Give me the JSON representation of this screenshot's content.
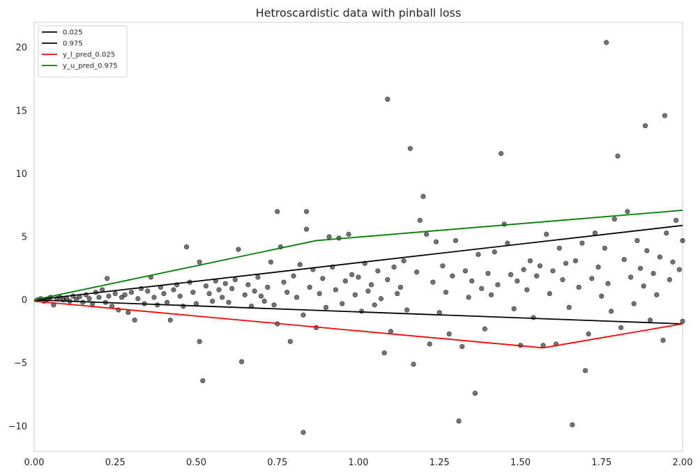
{
  "chart_data": {
    "type": "scatter",
    "title": "Hetroscardistic data with pinball loss",
    "xlabel": "",
    "ylabel": "",
    "xlim": [
      0,
      2
    ],
    "ylim": [
      -12,
      22
    ],
    "grid": false,
    "legend_position": "top-left",
    "x_ticks": [
      0,
      0.25,
      0.5,
      0.75,
      1.0,
      1.25,
      1.5,
      1.75,
      2.0
    ],
    "x_tick_labels": [
      "0.00",
      "0.25",
      "0.50",
      "0.75",
      "1.00",
      "1.25",
      "1.50",
      "1.75",
      "2.00"
    ],
    "y_ticks": [
      -10,
      -5,
      0,
      5,
      10,
      15,
      20
    ],
    "y_tick_labels": [
      "−10",
      "−5",
      "0",
      "5",
      "10",
      "15",
      "20"
    ],
    "legend": [
      {
        "label": "0.025",
        "color": "#000000"
      },
      {
        "label": "0.975",
        "color": "#000000"
      },
      {
        "label": "y_l_pred_0.025",
        "color": "#ff0000"
      },
      {
        "label": "y_u_pred_0.975",
        "color": "#008000"
      }
    ],
    "series": [
      {
        "name": "0.025",
        "type": "line",
        "color": "#000000",
        "x": [
          0,
          2.0
        ],
        "y": [
          0,
          -1.9
        ]
      },
      {
        "name": "0.975",
        "type": "line",
        "color": "#000000",
        "x": [
          0,
          2.0
        ],
        "y": [
          0,
          5.9
        ]
      },
      {
        "name": "y_l_pred_0.025",
        "type": "line",
        "color": "#ff0000",
        "x": [
          0,
          1.57,
          2.0
        ],
        "y": [
          -0.1,
          -3.8,
          -1.9
        ]
      },
      {
        "name": "y_u_pred_0.975",
        "type": "line",
        "color": "#008000",
        "x": [
          0,
          0.87,
          2.0
        ],
        "y": [
          0,
          4.7,
          7.1
        ]
      }
    ],
    "scatter_points": [
      [
        0.01,
        0.0
      ],
      [
        0.02,
        0.1
      ],
      [
        0.03,
        -0.1
      ],
      [
        0.04,
        0.05
      ],
      [
        0.05,
        0.2
      ],
      [
        0.06,
        -0.4
      ],
      [
        0.07,
        0.1
      ],
      [
        0.08,
        0.2
      ],
      [
        0.09,
        0.0
      ],
      [
        0.1,
        0.15
      ],
      [
        0.11,
        -0.1
      ],
      [
        0.12,
        0.3
      ],
      [
        0.13,
        0.05
      ],
      [
        0.14,
        0.25
      ],
      [
        0.15,
        -0.2
      ],
      [
        0.16,
        0.4
      ],
      [
        0.17,
        0.1
      ],
      [
        0.18,
        -0.3
      ],
      [
        0.19,
        0.6
      ],
      [
        0.2,
        0.2
      ],
      [
        0.21,
        0.8
      ],
      [
        0.22,
        -0.2
      ],
      [
        0.225,
        1.7
      ],
      [
        0.23,
        0.3
      ],
      [
        0.24,
        -0.5
      ],
      [
        0.25,
        0.5
      ],
      [
        0.26,
        -0.8
      ],
      [
        0.27,
        0.2
      ],
      [
        0.28,
        0.4
      ],
      [
        0.29,
        -1.0
      ],
      [
        0.3,
        0.6
      ],
      [
        0.31,
        -1.6
      ],
      [
        0.32,
        0.1
      ],
      [
        0.33,
        0.9
      ],
      [
        0.34,
        -0.3
      ],
      [
        0.35,
        0.7
      ],
      [
        0.36,
        1.8
      ],
      [
        0.37,
        0.2
      ],
      [
        0.38,
        -0.4
      ],
      [
        0.39,
        1.0
      ],
      [
        0.4,
        0.5
      ],
      [
        0.41,
        -0.2
      ],
      [
        0.42,
        -1.6
      ],
      [
        0.43,
        0.8
      ],
      [
        0.44,
        1.2
      ],
      [
        0.45,
        0.3
      ],
      [
        0.46,
        -0.5
      ],
      [
        0.47,
        4.2
      ],
      [
        0.48,
        1.4
      ],
      [
        0.49,
        0.6
      ],
      [
        0.5,
        -0.3
      ],
      [
        0.51,
        -3.3
      ],
      [
        0.51,
        3.0
      ],
      [
        0.52,
        -6.4
      ],
      [
        0.53,
        1.1
      ],
      [
        0.54,
        0.5
      ],
      [
        0.55,
        -0.1
      ],
      [
        0.56,
        1.5
      ],
      [
        0.57,
        0.8
      ],
      [
        0.58,
        0.2
      ],
      [
        0.59,
        1.3
      ],
      [
        0.6,
        -0.2
      ],
      [
        0.61,
        0.9
      ],
      [
        0.62,
        1.6
      ],
      [
        0.63,
        4.0
      ],
      [
        0.64,
        -4.9
      ],
      [
        0.65,
        0.4
      ],
      [
        0.66,
        1.2
      ],
      [
        0.67,
        -0.5
      ],
      [
        0.68,
        0.7
      ],
      [
        0.69,
        1.8
      ],
      [
        0.7,
        0.3
      ],
      [
        0.71,
        -0.1
      ],
      [
        0.72,
        1.0
      ],
      [
        0.73,
        3.0
      ],
      [
        0.74,
        -0.4
      ],
      [
        0.75,
        7.0
      ],
      [
        0.75,
        -1.9
      ],
      [
        0.76,
        4.2
      ],
      [
        0.77,
        1.4
      ],
      [
        0.78,
        0.6
      ],
      [
        0.79,
        -3.3
      ],
      [
        0.8,
        1.9
      ],
      [
        0.81,
        0.2
      ],
      [
        0.82,
        2.8
      ],
      [
        0.83,
        -10.5
      ],
      [
        0.83,
        -1.2
      ],
      [
        0.84,
        7.0
      ],
      [
        0.84,
        5.6
      ],
      [
        0.85,
        1.0
      ],
      [
        0.86,
        2.4
      ],
      [
        0.87,
        -2.2
      ],
      [
        0.88,
        0.5
      ],
      [
        0.89,
        1.7
      ],
      [
        0.9,
        -0.6
      ],
      [
        0.91,
        5.0
      ],
      [
        0.92,
        2.6
      ],
      [
        0.93,
        0.8
      ],
      [
        0.94,
        4.9
      ],
      [
        0.95,
        -0.3
      ],
      [
        0.96,
        1.5
      ],
      [
        0.97,
        5.2
      ],
      [
        0.98,
        2.0
      ],
      [
        0.99,
        0.4
      ],
      [
        1.0,
        1.8
      ],
      [
        1.01,
        -0.9
      ],
      [
        1.02,
        2.9
      ],
      [
        1.03,
        0.7
      ],
      [
        1.04,
        1.2
      ],
      [
        1.05,
        -0.4
      ],
      [
        1.06,
        2.3
      ],
      [
        1.07,
        0.1
      ],
      [
        1.08,
        -4.2
      ],
      [
        1.09,
        15.9
      ],
      [
        1.09,
        1.6
      ],
      [
        1.1,
        -2.5
      ],
      [
        1.11,
        2.6
      ],
      [
        1.12,
        0.5
      ],
      [
        1.13,
        1.0
      ],
      [
        1.14,
        3.1
      ],
      [
        1.15,
        -0.8
      ],
      [
        1.16,
        12.0
      ],
      [
        1.17,
        -5.1
      ],
      [
        1.18,
        2.2
      ],
      [
        1.19,
        6.3
      ],
      [
        1.2,
        8.2
      ],
      [
        1.21,
        5.2
      ],
      [
        1.22,
        -3.5
      ],
      [
        1.23,
        1.4
      ],
      [
        1.24,
        4.6
      ],
      [
        1.25,
        -1.0
      ],
      [
        1.26,
        2.7
      ],
      [
        1.27,
        0.6
      ],
      [
        1.28,
        -2.7
      ],
      [
        1.29,
        1.9
      ],
      [
        1.3,
        4.7
      ],
      [
        1.31,
        -9.6
      ],
      [
        1.32,
        -3.7
      ],
      [
        1.33,
        2.3
      ],
      [
        1.34,
        0.2
      ],
      [
        1.35,
        1.5
      ],
      [
        1.36,
        -7.4
      ],
      [
        1.37,
        3.6
      ],
      [
        1.38,
        0.9
      ],
      [
        1.39,
        -2.3
      ],
      [
        1.4,
        2.1
      ],
      [
        1.41,
        0.4
      ],
      [
        1.42,
        3.8
      ],
      [
        1.43,
        1.2
      ],
      [
        1.44,
        11.6
      ],
      [
        1.45,
        6.0
      ],
      [
        1.46,
        4.5
      ],
      [
        1.47,
        2.0
      ],
      [
        1.48,
        -0.7
      ],
      [
        1.49,
        1.5
      ],
      [
        1.5,
        -3.6
      ],
      [
        1.51,
        2.4
      ],
      [
        1.52,
        0.8
      ],
      [
        1.53,
        3.1
      ],
      [
        1.54,
        -1.4
      ],
      [
        1.55,
        1.9
      ],
      [
        1.56,
        2.7
      ],
      [
        1.57,
        -3.6
      ],
      [
        1.58,
        5.2
      ],
      [
        1.59,
        0.5
      ],
      [
        1.6,
        2.3
      ],
      [
        1.61,
        -3.5
      ],
      [
        1.62,
        4.1
      ],
      [
        1.63,
        1.6
      ],
      [
        1.64,
        2.9
      ],
      [
        1.65,
        -0.6
      ],
      [
        1.66,
        -9.9
      ],
      [
        1.67,
        3.1
      ],
      [
        1.68,
        1.0
      ],
      [
        1.69,
        4.5
      ],
      [
        1.7,
        -5.6
      ],
      [
        1.71,
        -2.7
      ],
      [
        1.72,
        1.7
      ],
      [
        1.73,
        5.3
      ],
      [
        1.74,
        2.6
      ],
      [
        1.75,
        0.3
      ],
      [
        1.76,
        4.1
      ],
      [
        1.765,
        20.4
      ],
      [
        1.77,
        1.3
      ],
      [
        1.78,
        -0.9
      ],
      [
        1.79,
        6.4
      ],
      [
        1.8,
        11.4
      ],
      [
        1.81,
        -2.2
      ],
      [
        1.82,
        3.2
      ],
      [
        1.83,
        7.0
      ],
      [
        1.84,
        1.8
      ],
      [
        1.85,
        -0.3
      ],
      [
        1.86,
        4.7
      ],
      [
        1.87,
        2.5
      ],
      [
        1.88,
        1.1
      ],
      [
        1.885,
        13.8
      ],
      [
        1.89,
        3.9
      ],
      [
        1.9,
        -1.6
      ],
      [
        1.91,
        2.1
      ],
      [
        1.92,
        0.4
      ],
      [
        1.93,
        3.4
      ],
      [
        1.94,
        -3.2
      ],
      [
        1.945,
        14.6
      ],
      [
        1.95,
        5.3
      ],
      [
        1.96,
        1.6
      ],
      [
        1.97,
        3.0
      ],
      [
        1.98,
        6.3
      ],
      [
        1.99,
        2.4
      ],
      [
        2.0,
        4.7
      ],
      [
        2.0,
        -1.7
      ]
    ]
  }
}
